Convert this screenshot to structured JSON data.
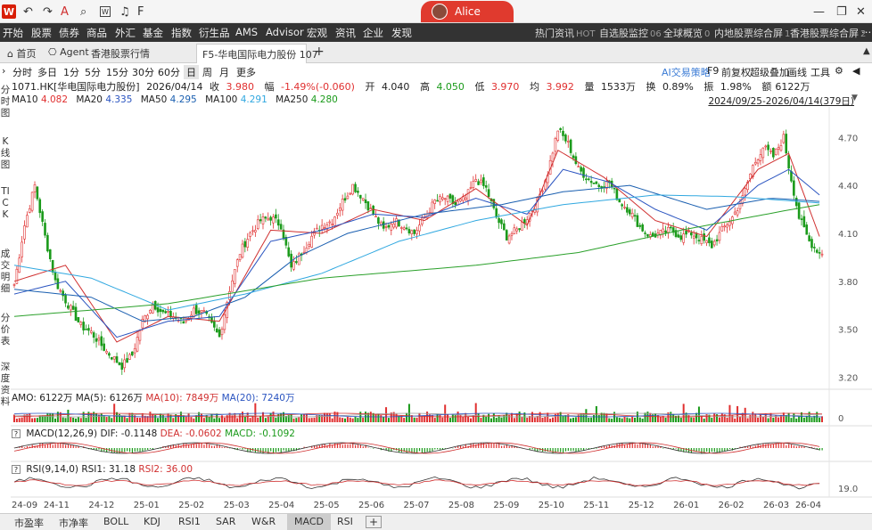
{
  "titlebar": {
    "user": "Alice"
  },
  "menu": {
    "items": [
      "开始",
      "股票",
      "债券",
      "商品",
      "外汇",
      "基金",
      "指数",
      "衍生品",
      "AMS",
      "Advisor",
      "宏观",
      "资讯",
      "企业",
      "发现"
    ],
    "right": [
      {
        "label": "热门资讯",
        "badge": "HOT"
      },
      {
        "label": "自选股监控",
        "badge": "06"
      },
      {
        "label": "全球概览",
        "badge": "0"
      },
      {
        "label": "内地股票综合屏",
        "badge": "1"
      },
      {
        "label": "香港股票综合屏",
        "badge": "2"
      }
    ]
  },
  "tabs": {
    "home": "首页",
    "agent": "Agent",
    "hk": "香港股票行情",
    "active": "F5-华电国际电力股份 107",
    "add": "+"
  },
  "period": {
    "items": [
      "分时",
      "多日",
      "1分",
      "5分",
      "15分",
      "30分",
      "60分",
      "日",
      "周",
      "月",
      "更多"
    ],
    "selected": "日",
    "right": [
      "AI交易策略",
      "F9",
      "前复权",
      "超级叠加",
      "画线",
      "工具"
    ]
  },
  "leftnav": [
    "分时图",
    "K线图",
    "TICK",
    "成交明细",
    "分价表",
    "深度资料"
  ],
  "quote": {
    "code": "1071.HK[华电国际电力股份]",
    "date": "2026/04/14",
    "close_label": "收",
    "close": "3.980",
    "chg_label": "幅",
    "chg": "-1.49%(-0.060)",
    "open_label": "开",
    "open": "4.040",
    "high_label": "高",
    "high": "4.050",
    "low_label": "低",
    "low": "3.970",
    "avg_label": "均",
    "avg": "3.992",
    "vol_label": "量",
    "vol": "1533万",
    "turn_label": "换",
    "turn": "0.89%",
    "amp_label": "振",
    "amp": "1.98%",
    "amt_label": "额",
    "amt": "6122万"
  },
  "ma_line": [
    {
      "label": "MA10",
      "value": "4.082",
      "color": "#d03030"
    },
    {
      "label": "MA20",
      "value": "4.335",
      "color": "#2a54c0"
    },
    {
      "label": "MA50",
      "value": "4.295",
      "color": "#1a5fb0"
    },
    {
      "label": "MA100",
      "value": "4.291",
      "color": "#30a8e0"
    },
    {
      "label": "MA250",
      "value": "4.280",
      "color": "#2aa02a"
    }
  ],
  "range_label": "2024/09/25-2026/04/14(379日)",
  "indicators": {
    "amo": "AMO: 6122万",
    "amo_ma5": "MA(5): 6126万",
    "amo_ma10": "MA(10): 7849万",
    "amo_ma20": "MA(20): 7240万",
    "macd_label": "MACD(12,26,9)",
    "dif": "DIF: -0.1148",
    "dea": "DEA: -0.0602",
    "macd": "MACD: -0.1092",
    "rsi_label": "RSI(9,14,0)",
    "rsi1": "RSI1: 31.18",
    "rsi2": "RSI2: 36.00"
  },
  "bottom_tabs": [
    "市盈率",
    "市净率",
    "BOLL",
    "KDJ",
    "RSI1",
    "SAR",
    "W&R",
    "MACD",
    "RSI"
  ],
  "bottom_selected": "MACD",
  "chart_data": {
    "type": "candlestick",
    "y_ticks": [
      4.7,
      4.4,
      4.1,
      3.8,
      3.5,
      3.2
    ],
    "ylim": [
      3.13,
      4.88
    ],
    "x_ticks": [
      "24-09",
      "24-11",
      "24-12",
      "25-01",
      "25-02",
      "25-03",
      "25-04",
      "25-05",
      "25-06",
      "25-07",
      "25-08",
      "25-09",
      "25-10",
      "25-11",
      "25-12",
      "26-01",
      "26-02",
      "26-03",
      "26-04"
    ],
    "volume_axis": "0",
    "rsi_axis": "19.0",
    "close_path": [
      [
        0,
        3.78
      ],
      [
        4,
        4.15
      ],
      [
        8,
        4.4
      ],
      [
        12,
        4.08
      ],
      [
        16,
        3.8
      ],
      [
        20,
        3.68
      ],
      [
        26,
        3.52
      ],
      [
        30,
        3.48
      ],
      [
        36,
        3.36
      ],
      [
        42,
        3.27
      ],
      [
        46,
        3.34
      ],
      [
        50,
        3.55
      ],
      [
        54,
        3.66
      ],
      [
        58,
        3.6
      ],
      [
        62,
        3.58
      ],
      [
        66,
        3.54
      ],
      [
        70,
        3.62
      ],
      [
        74,
        3.6
      ],
      [
        80,
        3.45
      ],
      [
        84,
        3.75
      ],
      [
        88,
        3.98
      ],
      [
        92,
        4.1
      ],
      [
        96,
        4.18
      ],
      [
        100,
        4.2
      ],
      [
        104,
        4.15
      ],
      [
        108,
        3.88
      ],
      [
        112,
        3.98
      ],
      [
        116,
        4.08
      ],
      [
        120,
        4.15
      ],
      [
        124,
        4.18
      ],
      [
        128,
        4.3
      ],
      [
        132,
        4.4
      ],
      [
        136,
        4.32
      ],
      [
        140,
        4.22
      ],
      [
        144,
        4.12
      ],
      [
        148,
        4.18
      ],
      [
        152,
        4.15
      ],
      [
        156,
        4.1
      ],
      [
        160,
        4.2
      ],
      [
        164,
        4.3
      ],
      [
        168,
        4.32
      ],
      [
        172,
        4.28
      ],
      [
        176,
        4.32
      ],
      [
        180,
        4.44
      ],
      [
        184,
        4.38
      ],
      [
        188,
        4.2
      ],
      [
        192,
        4.08
      ],
      [
        196,
        4.12
      ],
      [
        200,
        4.2
      ],
      [
        204,
        4.3
      ],
      [
        208,
        4.48
      ],
      [
        212,
        4.75
      ],
      [
        216,
        4.66
      ],
      [
        220,
        4.5
      ],
      [
        224,
        4.44
      ],
      [
        228,
        4.4
      ],
      [
        232,
        4.42
      ],
      [
        236,
        4.3
      ],
      [
        240,
        4.24
      ],
      [
        244,
        4.14
      ],
      [
        248,
        4.08
      ],
      [
        252,
        4.1
      ],
      [
        256,
        4.12
      ],
      [
        260,
        4.08
      ],
      [
        264,
        4.1
      ],
      [
        268,
        4.06
      ],
      [
        272,
        4.02
      ],
      [
        276,
        4.12
      ],
      [
        280,
        4.2
      ],
      [
        284,
        4.32
      ],
      [
        288,
        4.52
      ],
      [
        292,
        4.64
      ],
      [
        296,
        4.58
      ],
      [
        300,
        4.7
      ],
      [
        302,
        4.52
      ],
      [
        306,
        4.2
      ],
      [
        310,
        4.05
      ],
      [
        314,
        3.98
      ]
    ],
    "ma_paths": {
      "MA10": [
        [
          0,
          3.8
        ],
        [
          20,
          3.9
        ],
        [
          40,
          3.42
        ],
        [
          60,
          3.58
        ],
        [
          80,
          3.55
        ],
        [
          100,
          4.12
        ],
        [
          120,
          4.1
        ],
        [
          140,
          4.25
        ],
        [
          160,
          4.18
        ],
        [
          180,
          4.38
        ],
        [
          200,
          4.15
        ],
        [
          212,
          4.62
        ],
        [
          230,
          4.45
        ],
        [
          250,
          4.18
        ],
        [
          270,
          4.08
        ],
        [
          290,
          4.5
        ],
        [
          302,
          4.6
        ],
        [
          314,
          4.08
        ]
      ],
      "MA20": [
        [
          0,
          3.72
        ],
        [
          20,
          3.8
        ],
        [
          40,
          3.45
        ],
        [
          60,
          3.55
        ],
        [
          80,
          3.58
        ],
        [
          100,
          4.05
        ],
        [
          120,
          4.12
        ],
        [
          140,
          4.22
        ],
        [
          160,
          4.2
        ],
        [
          180,
          4.32
        ],
        [
          200,
          4.22
        ],
        [
          214,
          4.5
        ],
        [
          232,
          4.42
        ],
        [
          250,
          4.25
        ],
        [
          270,
          4.12
        ],
        [
          290,
          4.4
        ],
        [
          302,
          4.5
        ],
        [
          314,
          4.34
        ]
      ],
      "MA50": [
        [
          0,
          3.75
        ],
        [
          30,
          3.7
        ],
        [
          50,
          3.55
        ],
        [
          70,
          3.58
        ],
        [
          90,
          3.7
        ],
        [
          110,
          3.95
        ],
        [
          130,
          4.1
        ],
        [
          160,
          4.22
        ],
        [
          190,
          4.28
        ],
        [
          214,
          4.36
        ],
        [
          240,
          4.4
        ],
        [
          270,
          4.25
        ],
        [
          295,
          4.32
        ],
        [
          314,
          4.3
        ]
      ],
      "MA100": [
        [
          0,
          3.9
        ],
        [
          30,
          3.82
        ],
        [
          60,
          3.62
        ],
        [
          90,
          3.72
        ],
        [
          120,
          3.85
        ],
        [
          150,
          4.05
        ],
        [
          180,
          4.18
        ],
        [
          214,
          4.28
        ],
        [
          250,
          4.34
        ],
        [
          280,
          4.33
        ],
        [
          314,
          4.29
        ]
      ],
      "MA250": [
        [
          0,
          3.58
        ],
        [
          60,
          3.66
        ],
        [
          120,
          3.82
        ],
        [
          180,
          3.9
        ],
        [
          220,
          3.98
        ],
        [
          260,
          4.12
        ],
        [
          300,
          4.24
        ],
        [
          314,
          4.28
        ]
      ]
    }
  }
}
